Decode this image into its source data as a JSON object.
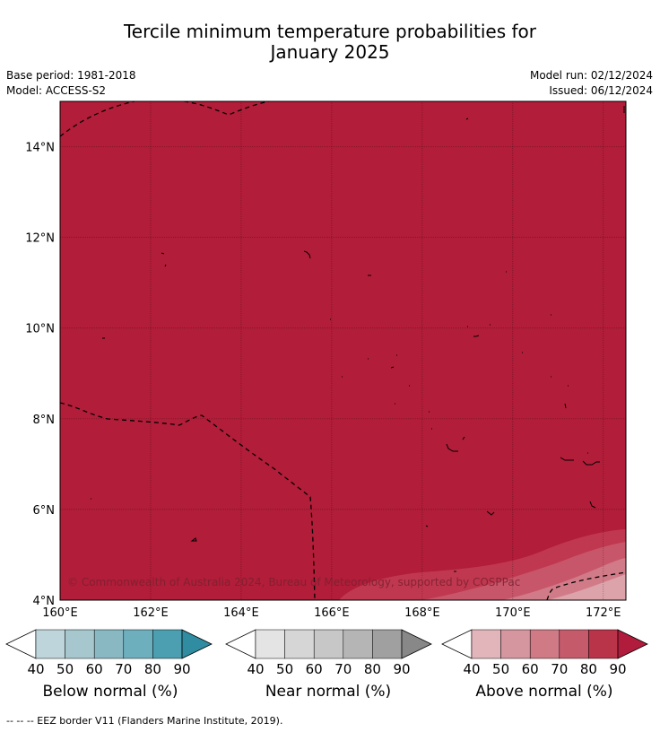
{
  "title_line1": "Tercile minimum temperature probabilities for",
  "title_line2": "January 2025",
  "meta": {
    "base_period": "Base period: 1981-2018",
    "model": "Model: ACCESS-S2",
    "model_run": "Model run: 02/12/2024",
    "issued": "Issued: 06/12/2024"
  },
  "map": {
    "lon_range": [
      160,
      172.5
    ],
    "lat_range": [
      4,
      15
    ],
    "lon_ticks": [
      160,
      162,
      164,
      166,
      168,
      170,
      172
    ],
    "lon_tick_labels": [
      "160°E",
      "162°E",
      "164°E",
      "166°E",
      "168°E",
      "170°E",
      "172°E"
    ],
    "lat_ticks": [
      4,
      6,
      8,
      10,
      12,
      14
    ],
    "lat_tick_labels": [
      "4°N",
      "6°N",
      "8°N",
      "10°N",
      "12°N",
      "14°N"
    ],
    "dominant_category": "Above normal",
    "dominant_probability_band": "80-90",
    "fill_color": "#b21d39",
    "copyright": "© Commonwealth of Australia 2024, Bureau of Meteorology, supported by COSPPac"
  },
  "colorbars": [
    {
      "title": "Below normal (%)",
      "ticks": [
        "40",
        "50",
        "60",
        "70",
        "80",
        "90"
      ],
      "colors": [
        "#bed5db",
        "#a5c7cd",
        "#89b8c3",
        "#6eafbd",
        "#4b9fb0",
        "#2f8ca1"
      ]
    },
    {
      "title": "Near normal (%)",
      "ticks": [
        "40",
        "50",
        "60",
        "70",
        "80",
        "90"
      ],
      "colors": [
        "#e4e4e4",
        "#d6d6d6",
        "#c7c7c7",
        "#b5b5b5",
        "#a0a0a0",
        "#888888"
      ]
    },
    {
      "title": "Above normal (%)",
      "ticks": [
        "40",
        "50",
        "60",
        "70",
        "80",
        "90"
      ],
      "colors": [
        "#e2b5ba",
        "#d5969f",
        "#d07a86",
        "#c55a6b",
        "#b93349",
        "#b11b3c"
      ]
    }
  ],
  "footer": "--  --  -- EEZ border V11 (Flanders Marine Institute, 2019)."
}
